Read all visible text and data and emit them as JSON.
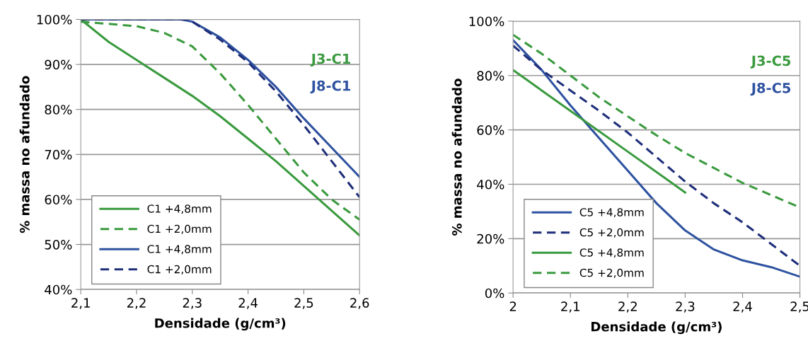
{
  "chart_data": [
    {
      "type": "line",
      "xlabel": "Densidade (g/cm³)",
      "ylabel": "% massa no afundado",
      "annotations": [
        "J3-C1",
        "J8-C1"
      ],
      "xlim": [
        2.1,
        2.6
      ],
      "xticks": [
        {
          "value": 2.1,
          "label": "2,1"
        },
        {
          "value": 2.2,
          "label": "2,2"
        },
        {
          "value": 2.3,
          "label": "2,3"
        },
        {
          "value": 2.4,
          "label": "2,4"
        },
        {
          "value": 2.5,
          "label": "2,5"
        },
        {
          "value": 2.6,
          "label": "2,6"
        }
      ],
      "ylim": [
        40,
        100
      ],
      "yticks": [
        {
          "value": 40,
          "label": "40%"
        },
        {
          "value": 50,
          "label": "50%"
        },
        {
          "value": 60,
          "label": "60%"
        },
        {
          "value": 70,
          "label": "70%"
        },
        {
          "value": 80,
          "label": "80%"
        },
        {
          "value": 90,
          "label": "90%"
        },
        {
          "value": 100,
          "label": "100%"
        }
      ],
      "grid": "y",
      "legend": "bottom left",
      "marker": "none",
      "series": [
        {
          "name": "C1 +4,8mm",
          "color": "#3a9a3e",
          "line_style": "solid",
          "x": [
            2.1,
            2.15,
            2.2,
            2.25,
            2.3,
            2.35,
            2.4,
            2.45,
            2.5,
            2.55,
            2.6
          ],
          "values": [
            100,
            95,
            91,
            87,
            83,
            78.5,
            73.5,
            68.5,
            63,
            57.5,
            52
          ]
        },
        {
          "name": "C1 +2,0mm",
          "color": "#3a9a3e",
          "line_style": "dashed",
          "x": [
            2.1,
            2.15,
            2.2,
            2.25,
            2.3,
            2.35,
            2.4,
            2.45,
            2.5,
            2.55,
            2.6
          ],
          "values": [
            99.5,
            99,
            98.5,
            97,
            94,
            88,
            81,
            73.5,
            66,
            60,
            55.5
          ]
        },
        {
          "name": "C1 +4,8mm",
          "color": "#2e52a0",
          "line_style": "solid",
          "x": [
            2.1,
            2.2,
            2.28,
            2.3,
            2.35,
            2.4,
            2.45,
            2.5,
            2.55,
            2.6
          ],
          "values": [
            100,
            100,
            100,
            99.5,
            96,
            91,
            85,
            78,
            71.5,
            65
          ]
        },
        {
          "name": "C1 +2,0mm",
          "color": "#1f2f7a",
          "line_style": "dashed",
          "x": [
            2.1,
            2.2,
            2.29,
            2.3,
            2.35,
            2.4,
            2.45,
            2.5,
            2.55,
            2.6
          ],
          "values": [
            100,
            100,
            100,
            99.5,
            95.5,
            90.5,
            84,
            76.5,
            68.5,
            60.5
          ]
        }
      ]
    },
    {
      "type": "line",
      "xlabel": "Densidade (g/cm³)",
      "ylabel": "% massa no afundado",
      "annotations": [
        "J3-C5",
        "J8-C5"
      ],
      "xlim": [
        2.0,
        2.5
      ],
      "xticks": [
        {
          "value": 2.0,
          "label": "2"
        },
        {
          "value": 2.1,
          "label": "2,1"
        },
        {
          "value": 2.2,
          "label": "2,2"
        },
        {
          "value": 2.3,
          "label": "2,3"
        },
        {
          "value": 2.4,
          "label": "2,4"
        },
        {
          "value": 2.5,
          "label": "2,5"
        }
      ],
      "ylim": [
        0,
        100
      ],
      "yticks": [
        {
          "value": 0,
          "label": "0%"
        },
        {
          "value": 20,
          "label": "20%"
        },
        {
          "value": 40,
          "label": "40%"
        },
        {
          "value": 60,
          "label": "60%"
        },
        {
          "value": 80,
          "label": "80%"
        },
        {
          "value": 100,
          "label": "100%"
        }
      ],
      "grid": "y",
      "legend": "bottom left",
      "marker": "none",
      "series": [
        {
          "name": "C5 +4,8mm",
          "color": "#2e52a0",
          "line_style": "solid",
          "x": [
            2.0,
            2.05,
            2.1,
            2.15,
            2.2,
            2.25,
            2.3,
            2.35,
            2.4,
            2.45,
            2.5
          ],
          "values": [
            93,
            82,
            69,
            57,
            45,
            33,
            23,
            16,
            12,
            9.5,
            6
          ]
        },
        {
          "name": "C5 +2,0mm",
          "color": "#1f2f7a",
          "line_style": "dashed",
          "x": [
            2.0,
            2.05,
            2.1,
            2.15,
            2.2,
            2.25,
            2.3,
            2.35,
            2.4,
            2.45,
            2.5
          ],
          "values": [
            91,
            82,
            74.5,
            67,
            59,
            50,
            41,
            33,
            26,
            18,
            10
          ]
        },
        {
          "name": "C5 +4,8mm",
          "color": "#3a9a3e",
          "line_style": "solid",
          "x": [
            2.0,
            2.1,
            2.2,
            2.3
          ],
          "values": [
            82,
            67,
            52,
            37
          ]
        },
        {
          "name": "C5 +2,0mm",
          "color": "#3a9a3e",
          "line_style": "dashed",
          "x": [
            2.0,
            2.05,
            2.1,
            2.15,
            2.2,
            2.25,
            2.3,
            2.35,
            2.4,
            2.45,
            2.5
          ],
          "values": [
            95,
            88,
            80,
            72,
            65,
            58,
            51.5,
            46,
            40.5,
            36,
            31.5
          ]
        }
      ]
    }
  ]
}
